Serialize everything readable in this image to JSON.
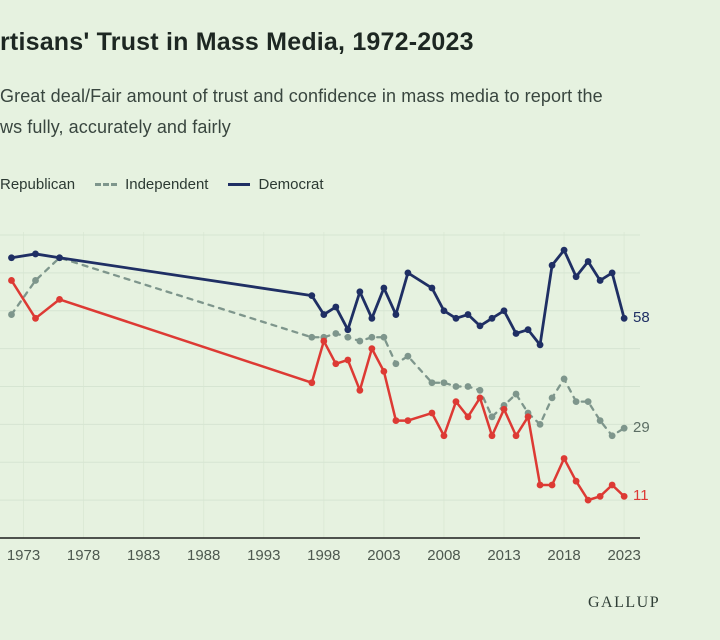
{
  "header": {
    "title": "rtisans' Trust in Mass Media, 1972-2023",
    "subtitle_line1": "Great deal/Fair amount of trust and confidence in mass media to report the",
    "subtitle_line2": "ws fully, accurately and fairly"
  },
  "legend": {
    "items": [
      {
        "label": "Republican",
        "color": "#dd3a34",
        "style": "solid"
      },
      {
        "label": "Independent",
        "color": "#7e968c",
        "style": "dashed"
      },
      {
        "label": "Democrat",
        "color": "#1f2f64",
        "style": "solid"
      }
    ]
  },
  "footer": {
    "brand": "GALLUP"
  },
  "colors": {
    "background": "#e6f2e0",
    "gridline": "#d6e5d2",
    "vertical_gridline": "#dcead6",
    "axis": "#1c1c1c",
    "republican": "#dd3a34",
    "independent": "#7e968c",
    "democrat": "#1f2f64",
    "tick_text": "#4d584f",
    "end_label_independent": "#5c6e64"
  },
  "chart_data": {
    "type": "line",
    "title": "rtisans' Trust in Mass Media, 1972-2023",
    "xlabel": "",
    "ylabel": "",
    "x": [
      1972,
      1974,
      1976,
      1997,
      1998,
      1999,
      2000,
      2001,
      2002,
      2003,
      2004,
      2005,
      2007,
      2008,
      2009,
      2010,
      2011,
      2012,
      2013,
      2014,
      2015,
      2016,
      2017,
      2018,
      2019,
      2020,
      2021,
      2022,
      2023
    ],
    "x_tick_labels": [
      "1973",
      "1978",
      "1983",
      "1988",
      "1993",
      "1998",
      "2003",
      "2008",
      "2013",
      "2018",
      "2023"
    ],
    "x_ticks": [
      1973,
      1978,
      1983,
      1988,
      1993,
      1998,
      2003,
      2008,
      2013,
      2018,
      2023
    ],
    "ylim": [
      0,
      84
    ],
    "grid_values": [
      10,
      20,
      30,
      40,
      50,
      60,
      70,
      80
    ],
    "grid": "horizontal-and-faint-vertical",
    "legend_position": "top-left",
    "series": [
      {
        "name": "Independent",
        "style": "dashed",
        "color": "#7e968c",
        "values": [
          59,
          68,
          74,
          53,
          53,
          54,
          53,
          52,
          53,
          53,
          46,
          48,
          41,
          41,
          40,
          40,
          39,
          32,
          35,
          38,
          33,
          30,
          37,
          42,
          36,
          36,
          31,
          27,
          29
        ],
        "end_label": "29",
        "end_label_color": "#5c6e64"
      },
      {
        "name": "Republican",
        "style": "solid",
        "color": "#dd3a34",
        "values": [
          68,
          58,
          63,
          41,
          52,
          46,
          47,
          39,
          50,
          44,
          31,
          31,
          33,
          27,
          36,
          32,
          37,
          27,
          34,
          27,
          32,
          14,
          14,
          21,
          15,
          10,
          11,
          14,
          11
        ],
        "end_label": "11",
        "end_label_color": "#dd3a34"
      },
      {
        "name": "Democrat",
        "style": "solid",
        "color": "#1f2f64",
        "values": [
          74,
          75,
          74,
          64,
          59,
          61,
          55,
          65,
          58,
          66,
          59,
          70,
          66,
          60,
          58,
          59,
          56,
          58,
          60,
          54,
          55,
          51,
          72,
          76,
          69,
          73,
          68,
          70,
          58
        ],
        "end_label": "58",
        "end_label_color": "#1f2f64"
      }
    ]
  }
}
